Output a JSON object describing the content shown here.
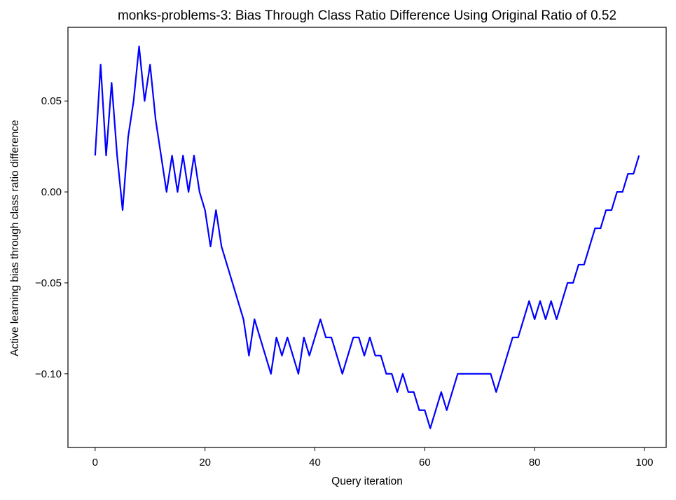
{
  "chart_data": {
    "type": "line",
    "title": "monks-problems-3: Bias Through Class Ratio Difference Using Original Ratio of 0.52",
    "xlabel": "Query iteration",
    "ylabel": "Active learning bias through class ratio difference",
    "xlim": [
      -4.95,
      103.95
    ],
    "ylim": [
      -0.1405,
      0.0905
    ],
    "x_ticks": [
      0,
      20,
      40,
      60,
      80,
      100
    ],
    "x_tick_labels": [
      "0",
      "20",
      "40",
      "60",
      "80",
      "100"
    ],
    "y_ticks": [
      0.05,
      0.0,
      -0.05,
      -0.1
    ],
    "y_tick_labels": [
      "0.05",
      "0.00",
      "−0.05",
      "−0.10"
    ],
    "grid": false,
    "legend": "none",
    "series": [
      {
        "color": "#0000ff",
        "x": [
          0,
          1,
          2,
          3,
          4,
          5,
          6,
          7,
          8,
          9,
          10,
          11,
          12,
          13,
          14,
          15,
          16,
          17,
          18,
          19,
          20,
          21,
          22,
          23,
          24,
          25,
          26,
          27,
          28,
          29,
          30,
          31,
          32,
          33,
          34,
          35,
          36,
          37,
          38,
          39,
          40,
          41,
          42,
          43,
          44,
          45,
          46,
          47,
          48,
          49,
          50,
          51,
          52,
          53,
          54,
          55,
          56,
          57,
          58,
          59,
          60,
          61,
          62,
          63,
          64,
          65,
          66,
          67,
          68,
          69,
          70,
          71,
          72,
          73,
          74,
          75,
          76,
          77,
          78,
          79,
          80,
          81,
          82,
          83,
          84,
          85,
          86,
          87,
          88,
          89,
          90,
          91,
          92,
          93,
          94,
          95,
          96,
          97,
          98,
          99
        ],
        "y": [
          0.02,
          0.07,
          0.02,
          0.06,
          0.02,
          -0.01,
          0.03,
          0.05,
          0.08,
          0.05,
          0.07,
          0.04,
          0.02,
          0.0,
          0.02,
          0.0,
          0.02,
          0.0,
          0.02,
          0.0,
          -0.01,
          -0.03,
          -0.01,
          -0.03,
          -0.04,
          -0.05,
          -0.06,
          -0.07,
          -0.09,
          -0.07,
          -0.08,
          -0.09,
          -0.1,
          -0.08,
          -0.09,
          -0.08,
          -0.09,
          -0.1,
          -0.08,
          -0.09,
          -0.08,
          -0.07,
          -0.08,
          -0.08,
          -0.09,
          -0.1,
          -0.09,
          -0.08,
          -0.08,
          -0.09,
          -0.08,
          -0.09,
          -0.09,
          -0.1,
          -0.1,
          -0.11,
          -0.1,
          -0.11,
          -0.11,
          -0.12,
          -0.12,
          -0.13,
          -0.12,
          -0.11,
          -0.12,
          -0.11,
          -0.1,
          -0.1,
          -0.1,
          -0.1,
          -0.1,
          -0.1,
          -0.1,
          -0.11,
          -0.1,
          -0.09,
          -0.08,
          -0.08,
          -0.07,
          -0.06,
          -0.07,
          -0.06,
          -0.07,
          -0.06,
          -0.07,
          -0.06,
          -0.05,
          -0.05,
          -0.04,
          -0.04,
          -0.03,
          -0.02,
          -0.02,
          -0.01,
          -0.01,
          0.0,
          0.0,
          0.01,
          0.01,
          0.02
        ]
      }
    ]
  }
}
